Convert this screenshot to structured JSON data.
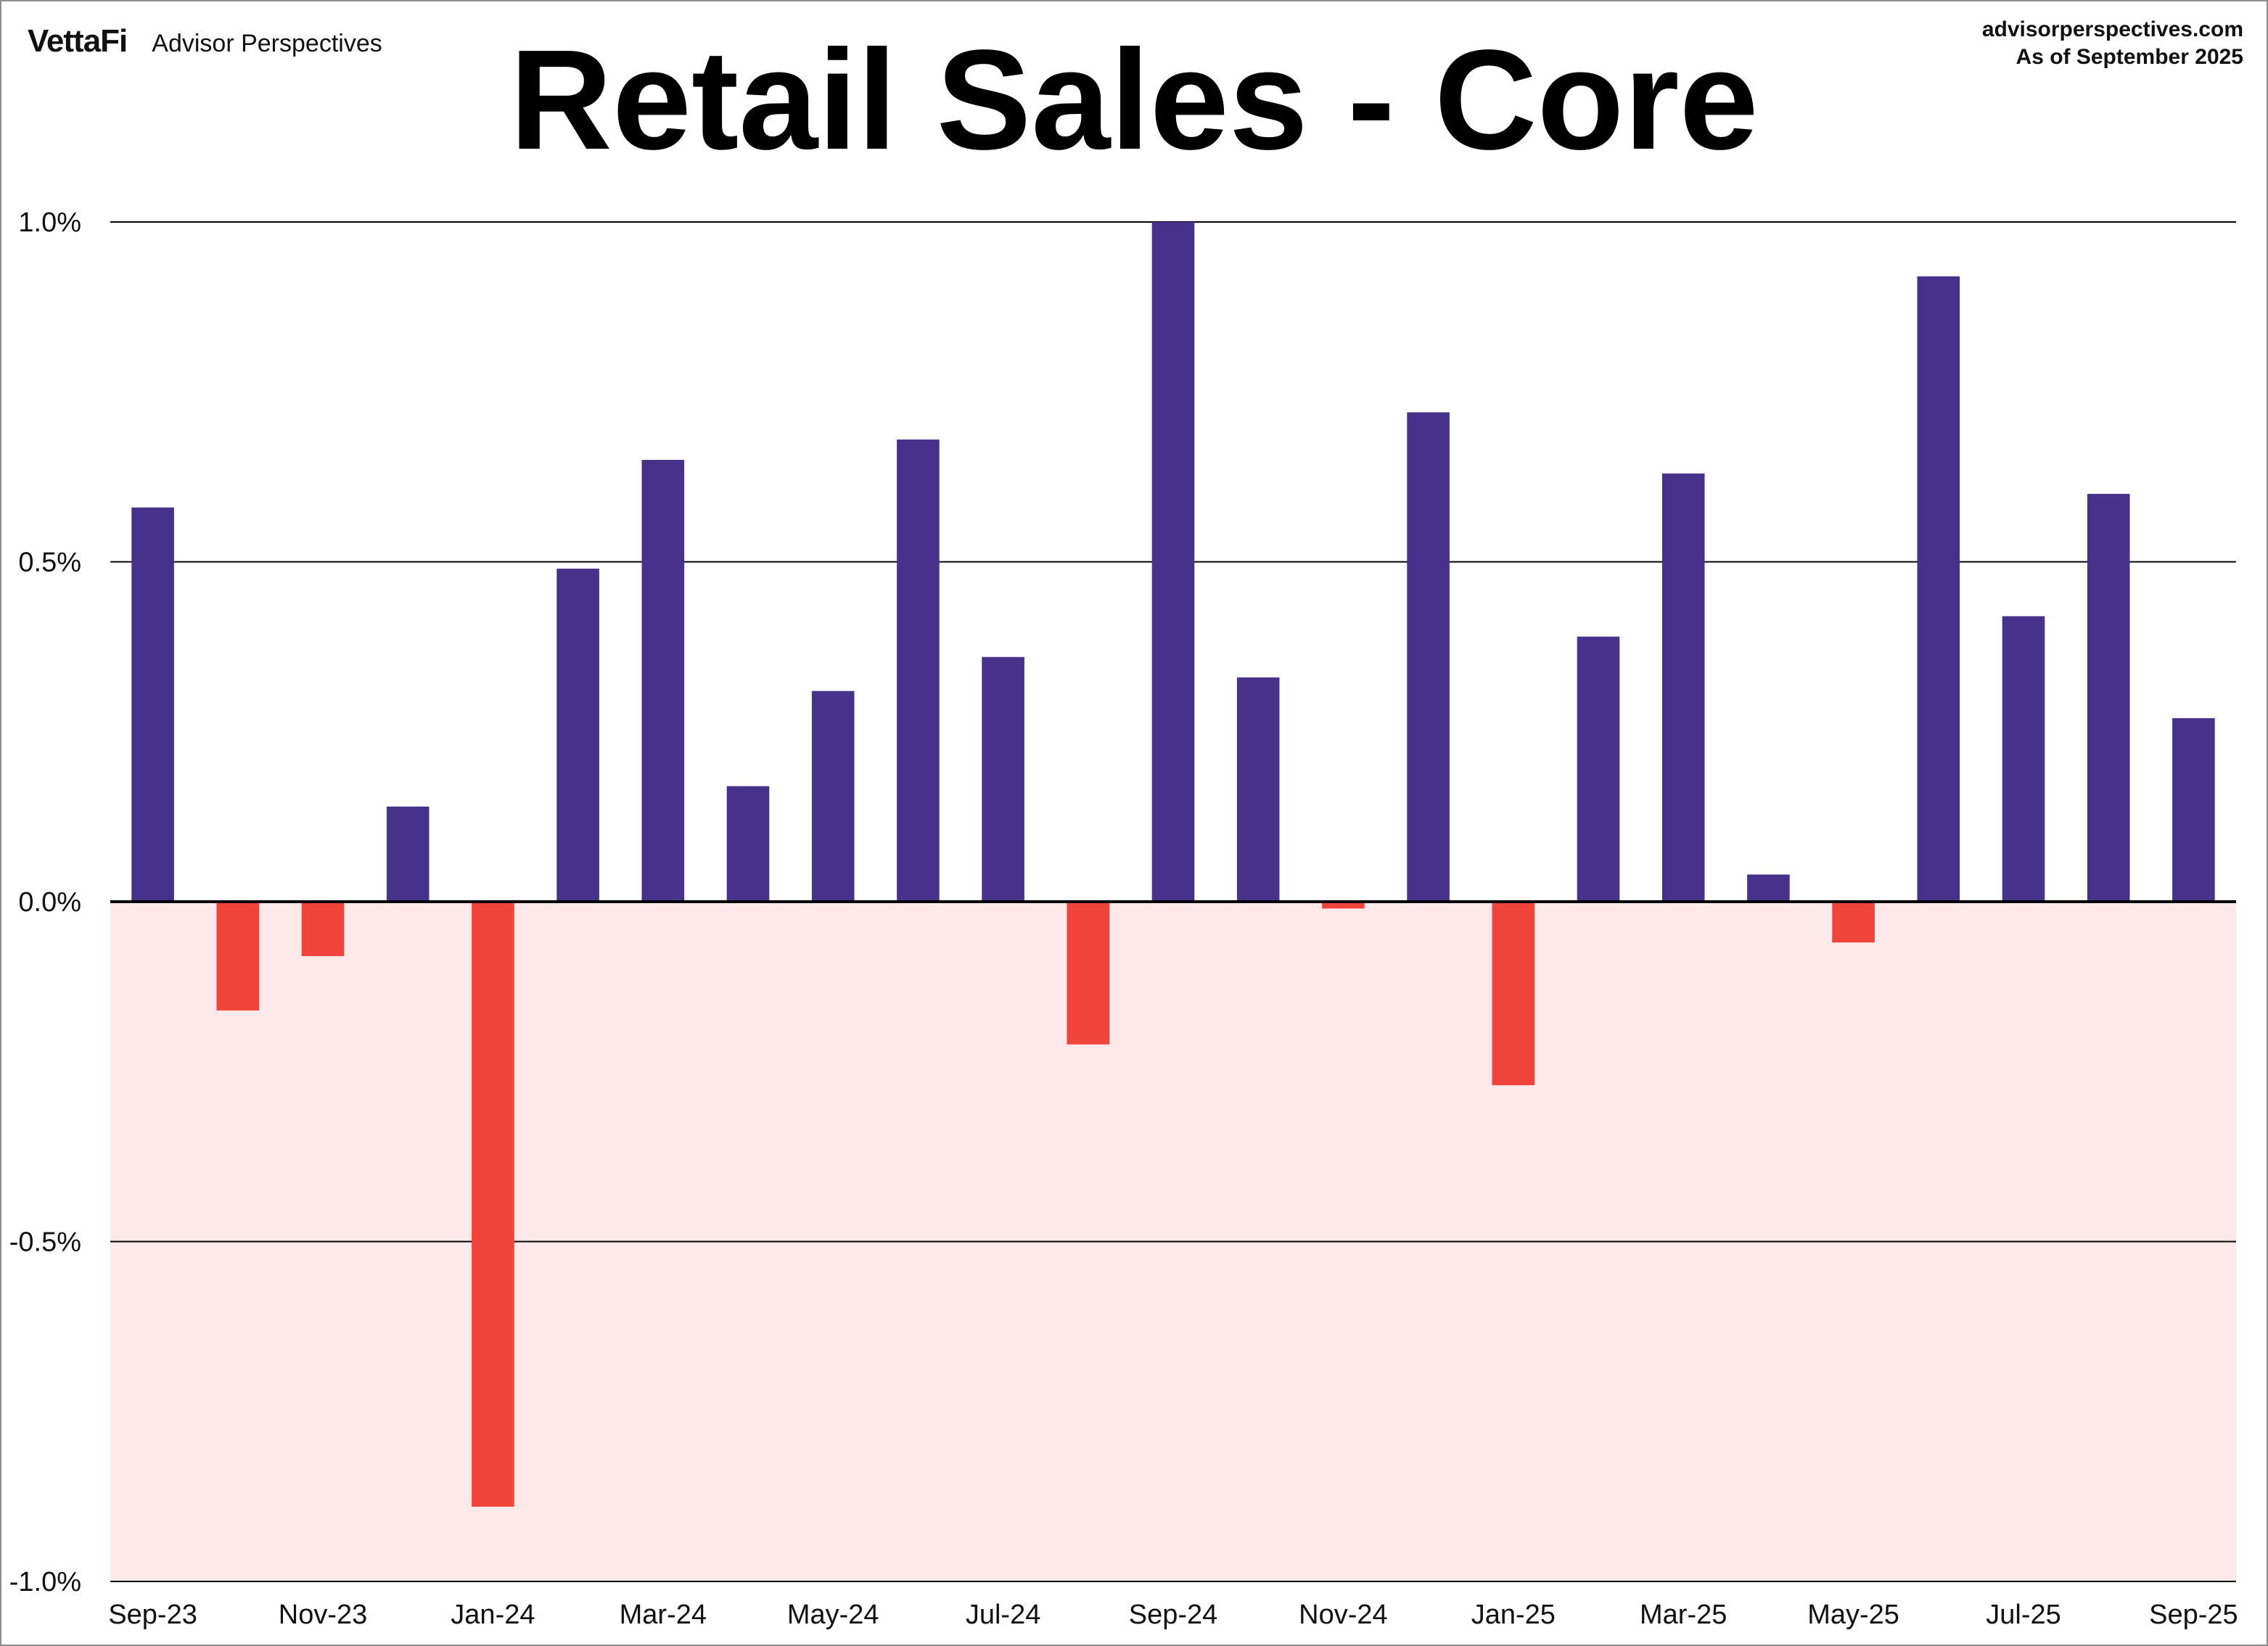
{
  "header": {
    "logo_text": "VettaFi",
    "brand_name": "Advisor Perspectives",
    "source_url": "advisorperspectives.com",
    "as_of": "As of September 2025"
  },
  "colors": {
    "positive_bar": "#46328a",
    "negative_bar": "#f0443a",
    "negative_region": "#fde9e9"
  },
  "chart_data": {
    "type": "bar",
    "title": "Retail Sales - Core",
    "xlabel": "",
    "ylabel": "",
    "ylim": [
      -1.0,
      1.0
    ],
    "yticks": [
      1.0,
      0.5,
      0.0,
      -0.5,
      -1.0
    ],
    "ytick_labels": [
      "1.0%",
      "0.5%",
      "0.0%",
      "-0.5%",
      "-1.0%"
    ],
    "grid": true,
    "categories": [
      "Sep-23",
      "Oct-23",
      "Nov-23",
      "Dec-23",
      "Jan-24",
      "Feb-24",
      "Mar-24",
      "Apr-24",
      "May-24",
      "Jun-24",
      "Jul-24",
      "Aug-24",
      "Sep-24",
      "Oct-24",
      "Nov-24",
      "Dec-24",
      "Jan-25",
      "Feb-25",
      "Mar-25",
      "Apr-25",
      "May-25",
      "Jun-25",
      "Jul-25",
      "Aug-25",
      "Sep-25"
    ],
    "xtick_labels": [
      "Sep-23",
      "Nov-23",
      "Jan-24",
      "Mar-24",
      "May-24",
      "Jul-24",
      "Sep-24",
      "Nov-24",
      "Jan-25",
      "Mar-25",
      "May-25",
      "Jul-25",
      "Sep-25"
    ],
    "values": [
      0.58,
      -0.16,
      -0.08,
      0.14,
      -0.89,
      0.49,
      0.65,
      0.17,
      0.31,
      0.68,
      0.36,
      -0.21,
      1.0,
      0.33,
      -0.01,
      0.72,
      -0.27,
      0.39,
      0.63,
      0.04,
      -0.06,
      0.92,
      0.42,
      0.6,
      0.27
    ]
  }
}
